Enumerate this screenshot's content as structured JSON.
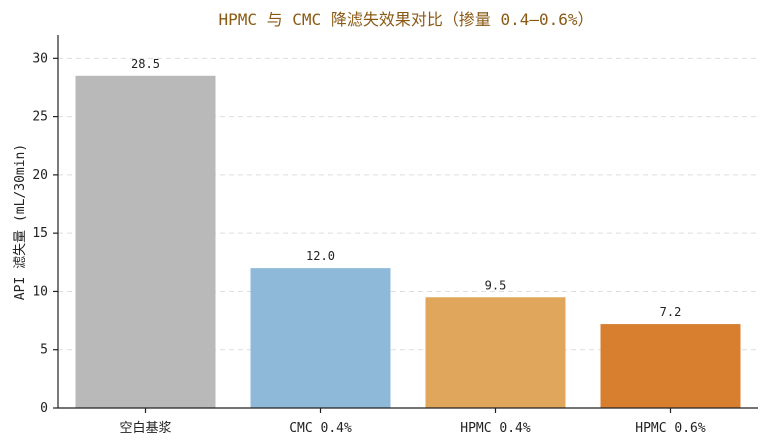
{
  "chart_data": {
    "type": "bar",
    "title": "HPMC 与 CMC 降滤失效果对比（掺量 0.4–0.6%）",
    "xlabel": "",
    "ylabel": "API 滤失量 (mL/30min)",
    "categories": [
      "空白基浆",
      "CMC 0.4%",
      "HPMC 0.4%",
      "HPMC 0.6%"
    ],
    "values": [
      28.5,
      12.0,
      9.5,
      7.2
    ],
    "value_labels": [
      "28.5",
      "12.0",
      "9.5",
      "7.2"
    ],
    "colors": [
      "#b9b9b9",
      "#8fb9d9",
      "#e0a65c",
      "#d87f2f"
    ],
    "ylim": [
      0,
      32
    ],
    "yticks": [
      0,
      5,
      10,
      15,
      20,
      25,
      30
    ],
    "grid": true,
    "legend": "none"
  }
}
